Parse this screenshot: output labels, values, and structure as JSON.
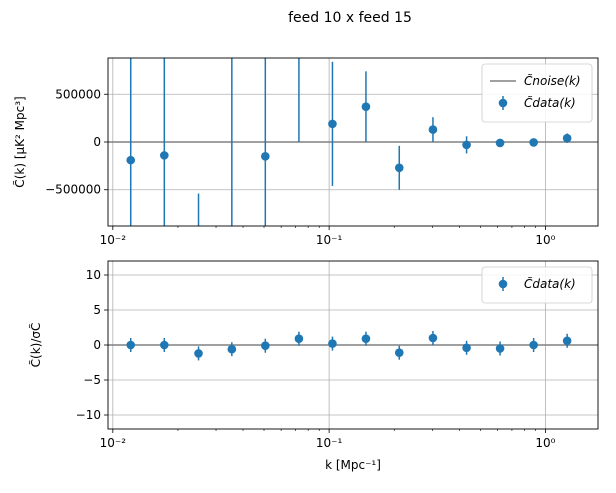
{
  "suptitle": "feed 10 x feed 15",
  "colors": {
    "data": "#1f77b4",
    "noise": "#808080",
    "grid": "#b0b0b0",
    "axis": "#000000"
  },
  "chart_data": [
    {
      "type": "scatter",
      "panel": "top",
      "xscale": "log",
      "xlim": [
        0.0095,
        1.75
      ],
      "ylim": [
        -880000,
        880000
      ],
      "xlabel": "",
      "ylabel": "C̃(k) [μK² Mpc³]",
      "yticks": [
        -500000,
        0,
        500000
      ],
      "ytick_labels": [
        "−500000",
        "0",
        "500000"
      ],
      "xtick_labels": [
        "10⁻²",
        "10⁻¹",
        "10⁰"
      ],
      "grid": true,
      "legend": {
        "placement": "top-right",
        "entries": [
          "C̃noise(k)",
          "C̃data(k)"
        ]
      },
      "series": [
        {
          "name": "C̃data(k)",
          "kind": "errorbar",
          "x": [
            0.0121,
            0.0173,
            0.0249,
            0.0355,
            0.0507,
            0.0725,
            0.1036,
            0.148,
            0.211,
            0.302,
            0.432,
            0.617,
            0.882,
            1.26
          ],
          "y": [
            -190000,
            -140000,
            null,
            null,
            -150000,
            null,
            190000,
            370000,
            -270000,
            130000,
            -30000,
            -10000,
            -5000,
            40000
          ],
          "yerr_low": [
            null,
            null,
            null,
            null,
            null,
            null,
            650000,
            370000,
            230000,
            130000,
            90000,
            25000,
            20000,
            50000
          ],
          "yerr_high": [
            null,
            null,
            null,
            null,
            null,
            null,
            650000,
            370000,
            230000,
            130000,
            90000,
            25000,
            20000,
            50000
          ],
          "bar_top": [
            880000,
            880000,
            -540000,
            880000,
            880000,
            880000,
            840000,
            740000,
            -40000,
            260000,
            60000,
            15000,
            15000,
            90000
          ],
          "bar_bottom": [
            -880000,
            -880000,
            -880000,
            -880000,
            -880000,
            0,
            -460000,
            0,
            -500000,
            0,
            -120000,
            -35000,
            -25000,
            -10000
          ]
        },
        {
          "name": "C̃noise(k)",
          "kind": "line",
          "y_const": 0
        }
      ]
    },
    {
      "type": "scatter",
      "panel": "bottom",
      "xscale": "log",
      "xlim": [
        0.0095,
        1.75
      ],
      "ylim": [
        -12,
        12
      ],
      "xlabel": "k [Mpc⁻¹]",
      "ylabel": "C̃(k)/σC̃",
      "yticks": [
        -10,
        -5,
        0,
        5,
        10
      ],
      "ytick_labels": [
        "−10",
        "−5",
        "0",
        "5",
        "10"
      ],
      "xtick_labels": [
        "10⁻²",
        "10⁻¹",
        "10⁰"
      ],
      "grid": true,
      "legend": {
        "placement": "top-right",
        "entries": [
          "C̃data(k)"
        ]
      },
      "series": [
        {
          "name": "C̃data(k)",
          "kind": "errorbar",
          "x": [
            0.0121,
            0.0173,
            0.0249,
            0.0355,
            0.0507,
            0.0725,
            0.1036,
            0.148,
            0.211,
            0.302,
            0.432,
            0.617,
            0.882,
            1.26
          ],
          "y": [
            0.0,
            0.0,
            -1.2,
            -0.6,
            -0.1,
            0.9,
            0.2,
            0.9,
            -1.1,
            1.0,
            -0.4,
            -0.5,
            0.0,
            0.6
          ],
          "yerr": [
            1,
            1,
            1,
            1,
            1,
            1,
            1,
            1,
            1,
            1,
            1,
            1,
            1,
            1
          ]
        },
        {
          "name": "",
          "kind": "line",
          "y_const": 0
        }
      ]
    }
  ]
}
